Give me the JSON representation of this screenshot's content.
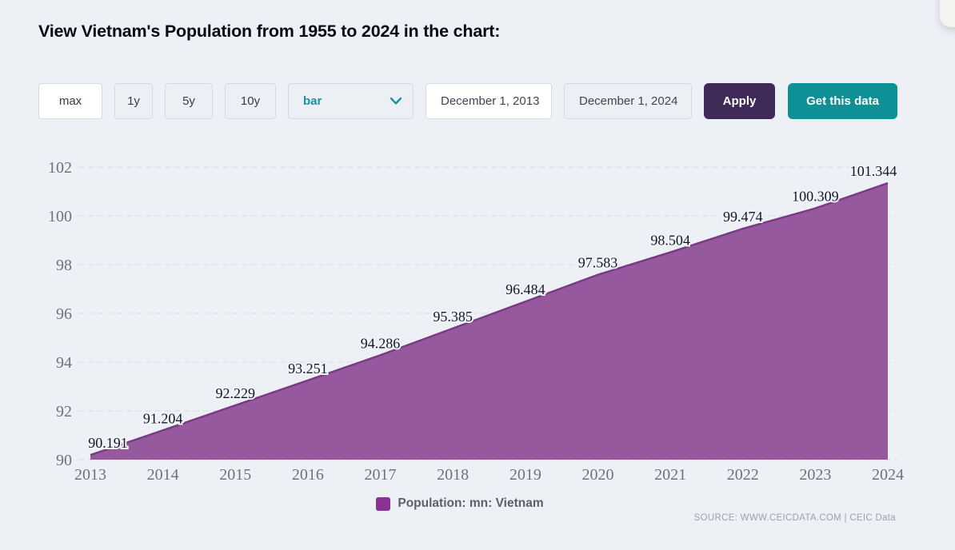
{
  "page": {
    "title": "View Vietnam's Population from 1955 to 2024 in the chart:",
    "source_text": "SOURCE: WWW.CEICDATA.COM | CEIC Data"
  },
  "toolbar": {
    "range_buttons": [
      {
        "label": "max",
        "active": true
      },
      {
        "label": "1y",
        "active": false
      },
      {
        "label": "5y",
        "active": false
      },
      {
        "label": "10y",
        "active": false
      }
    ],
    "chart_type_select": {
      "value": "bar",
      "chevron_icon": "chevron-down-icon",
      "accent_color": "#1692a2"
    },
    "date_from": "December 1, 2013",
    "date_to": "December 1, 2024",
    "apply_label": "Apply",
    "get_data_label": "Get this data"
  },
  "legend": {
    "label": "Population: mn: Vietnam",
    "marker_color": "#8b3392"
  },
  "chart_data": {
    "type": "area",
    "title": "",
    "xlabel": "",
    "ylabel": "",
    "categories": [
      "2013",
      "2014",
      "2015",
      "2016",
      "2017",
      "2018",
      "2019",
      "2020",
      "2021",
      "2022",
      "2023",
      "2024"
    ],
    "series": [
      {
        "name": "Population: mn: Vietnam",
        "values": [
          90.191,
          91.204,
          92.229,
          93.251,
          94.286,
          95.385,
          96.484,
          97.583,
          98.504,
          99.474,
          100.309,
          101.344
        ]
      }
    ],
    "data_labels": [
      "90.191",
      "91.204",
      "92.229",
      "93.251",
      "94.286",
      "95.385",
      "96.484",
      "97.583",
      "98.504",
      "99.474",
      "100.309",
      "101.344"
    ],
    "ylim": [
      90,
      102
    ],
    "ytick_step": 2,
    "grid": "horizontal-dashed",
    "legend_position": "bottom-center",
    "colors": {
      "area_fill": "#97599e",
      "area_line": "#7b3a85",
      "grid": "#d7dbe2",
      "axis_text": "#6b7380",
      "label_text": "#15152a",
      "label_halo": "#f0f3f7",
      "background": "#edf1f6"
    }
  }
}
